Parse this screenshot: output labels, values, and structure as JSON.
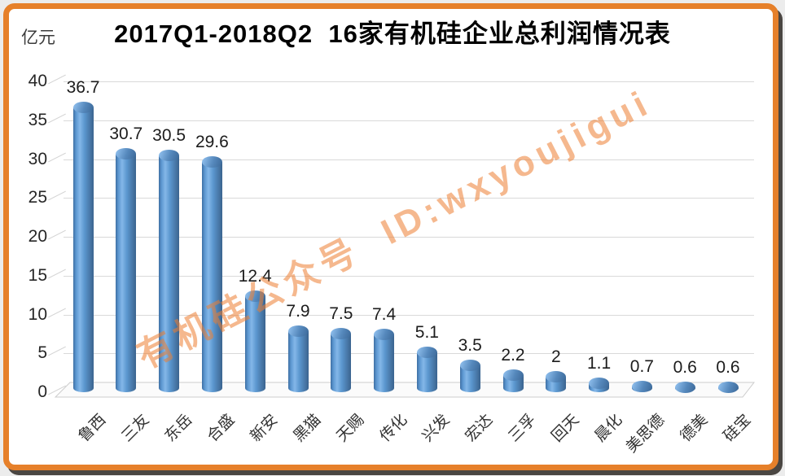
{
  "frame": {
    "border_color": "#E6802A",
    "shadow_color": "#4A4642",
    "background": "#FFFFFF"
  },
  "chart_data": {
    "type": "bar",
    "title": "2017Q1-2018Q2  16家有机硅企业总利润情况表",
    "unit_label": "亿元",
    "categories": [
      "鲁西",
      "三友",
      "东岳",
      "合盛",
      "新安",
      "黑猫",
      "天赐",
      "传化",
      "兴发",
      "宏达",
      "三孚",
      "回天",
      "晨化",
      "美思德",
      "德美",
      "硅宝"
    ],
    "values": [
      36.7,
      30.7,
      30.5,
      29.6,
      12.4,
      7.9,
      7.5,
      7.4,
      5.1,
      3.5,
      2.2,
      2,
      1.1,
      0.7,
      0.6,
      0.6
    ],
    "value_labels": [
      "36.7",
      "30.7",
      "30.5",
      "29.6",
      "12.4",
      "7.9",
      "7.5",
      "7.4",
      "5.1",
      "3.5",
      "2.2",
      "2",
      "1.1",
      "0.7",
      "0.6",
      "0.6"
    ],
    "yticks": [
      0,
      5,
      10,
      15,
      20,
      25,
      30,
      35,
      40
    ],
    "ylim": [
      0,
      40
    ],
    "grid": true,
    "legend_position": "none",
    "bar_color": "#5B9BD5",
    "grid_color": "#D9D9D9",
    "watermark": "有机硅公众号  ID:wxyoujigui",
    "watermark_color": "#ED7D31"
  }
}
